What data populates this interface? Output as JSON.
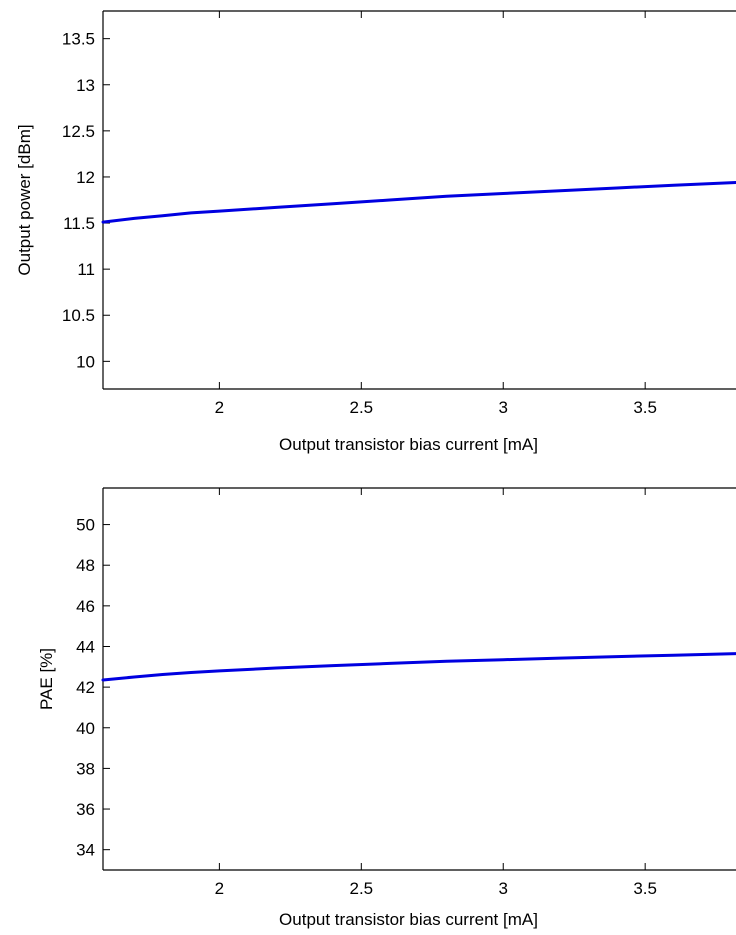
{
  "chart_data": [
    {
      "type": "line",
      "xlabel": "Output transistor bias current [mA]",
      "ylabel": "Output power [dBm]",
      "xlim": [
        1.59,
        3.82
      ],
      "ylim": [
        9.7,
        13.8
      ],
      "xticks": [
        2,
        2.5,
        3,
        3.5
      ],
      "xtick_labels": [
        "2",
        "2.5",
        "3",
        "3.5"
      ],
      "yticks": [
        10,
        10.5,
        11,
        11.5,
        12,
        12.5,
        13,
        13.5
      ],
      "ytick_labels": [
        "10",
        "10.5",
        "11",
        "11.5",
        "12",
        "12.5",
        "13",
        "13.5"
      ],
      "grid": false,
      "series": [
        {
          "color": "#0000e0",
          "x": [
            1.59,
            1.7,
            1.8,
            1.9,
            2.0,
            2.2,
            2.4,
            2.6,
            2.8,
            3.0,
            3.2,
            3.4,
            3.6,
            3.82
          ],
          "y": [
            11.51,
            11.55,
            11.58,
            11.61,
            11.63,
            11.67,
            11.71,
            11.75,
            11.79,
            11.82,
            11.85,
            11.88,
            11.91,
            11.94
          ]
        }
      ]
    },
    {
      "type": "line",
      "xlabel": "Output transistor bias current [mA]",
      "ylabel": "PAE [%]",
      "xlim": [
        1.59,
        3.82
      ],
      "ylim": [
        33,
        51.8
      ],
      "xticks": [
        2,
        2.5,
        3,
        3.5
      ],
      "xtick_labels": [
        "2",
        "2.5",
        "3",
        "3.5"
      ],
      "yticks": [
        34,
        36,
        38,
        40,
        42,
        44,
        46,
        48,
        50
      ],
      "ytick_labels": [
        "34",
        "36",
        "38",
        "40",
        "42",
        "44",
        "46",
        "48",
        "50"
      ],
      "grid": false,
      "series": [
        {
          "color": "#0000e0",
          "x": [
            1.59,
            1.7,
            1.8,
            1.9,
            2.0,
            2.2,
            2.4,
            2.6,
            2.8,
            3.0,
            3.2,
            3.4,
            3.6,
            3.82
          ],
          "y": [
            42.35,
            42.5,
            42.62,
            42.72,
            42.8,
            42.94,
            43.06,
            43.17,
            43.27,
            43.35,
            43.43,
            43.5,
            43.57,
            43.65
          ]
        }
      ]
    }
  ]
}
